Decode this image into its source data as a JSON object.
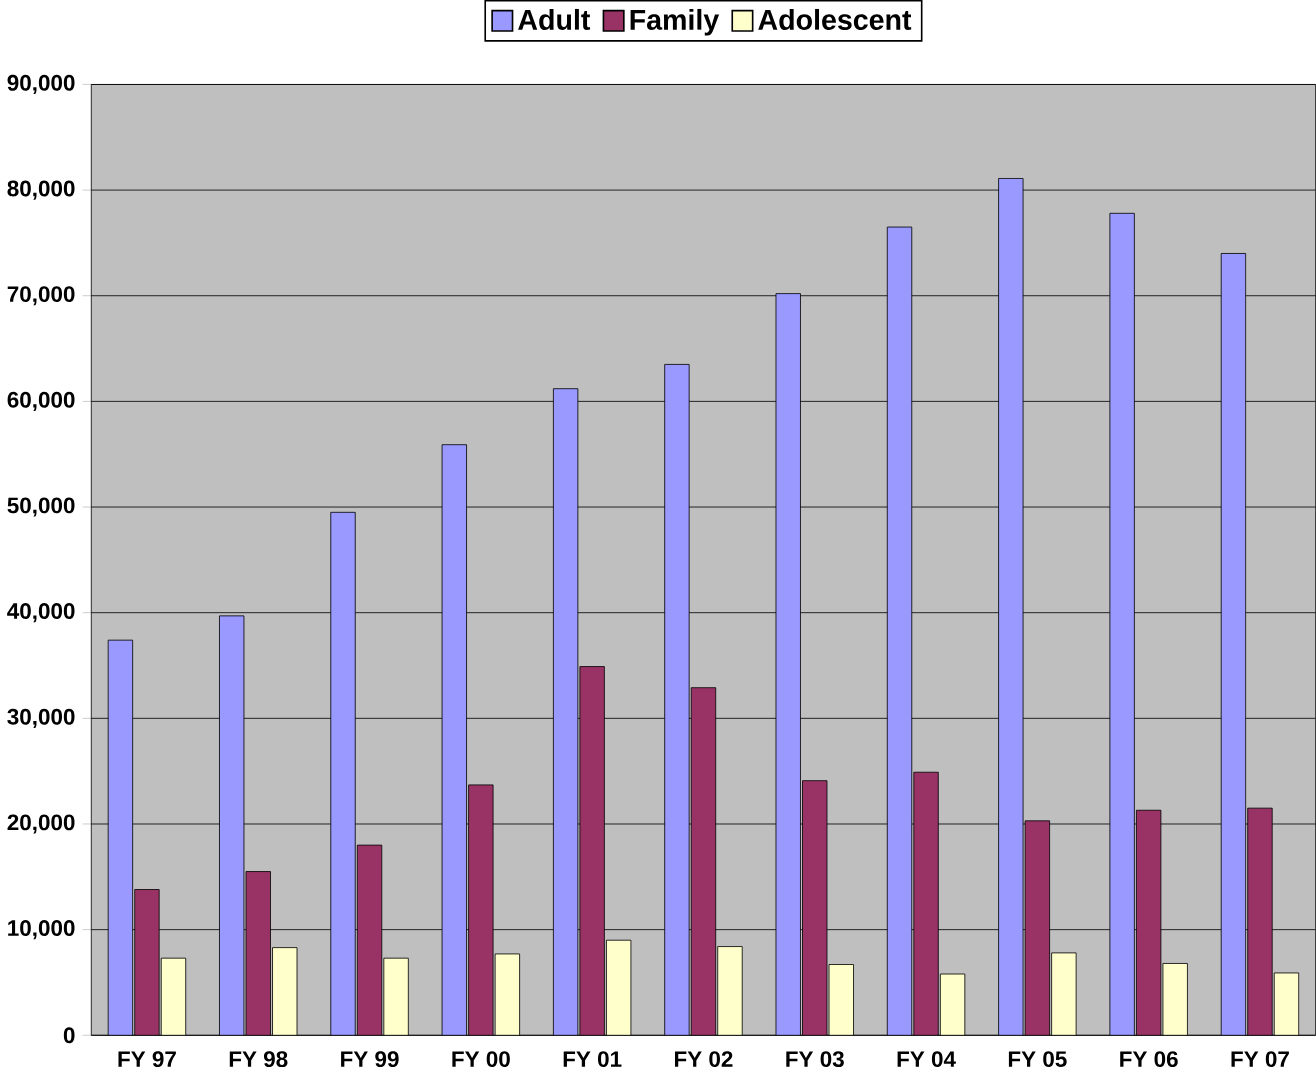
{
  "chart_data": {
    "type": "bar",
    "categories": [
      "FY 97",
      "FY 98",
      "FY 99",
      "FY 00",
      "FY 01",
      "FY 02",
      "FY 03",
      "FY 04",
      "FY 05",
      "FY 06",
      "FY 07"
    ],
    "series": [
      {
        "name": "Adult",
        "color": "#9999ff",
        "values": [
          37400,
          39700,
          49500,
          55900,
          61200,
          63500,
          70200,
          76500,
          81100,
          77800,
          74000
        ]
      },
      {
        "name": "Family",
        "color": "#993366",
        "values": [
          13800,
          15500,
          18000,
          23700,
          34900,
          32900,
          24100,
          24900,
          20300,
          21300,
          21500
        ]
      },
      {
        "name": "Adolescent",
        "color": "#ffffcc",
        "values": [
          7300,
          8300,
          7300,
          7700,
          9000,
          8400,
          6700,
          5800,
          7800,
          6800,
          5900
        ]
      }
    ],
    "ylim": [
      0,
      90000
    ],
    "yticks": [
      {
        "value": 0,
        "label": "0"
      },
      {
        "value": 10000,
        "label": "10,000"
      },
      {
        "value": 20000,
        "label": "20,000"
      },
      {
        "value": 30000,
        "label": "30,000"
      },
      {
        "value": 40000,
        "label": "40,000"
      },
      {
        "value": 50000,
        "label": "50,000"
      },
      {
        "value": 60000,
        "label": "60,000"
      },
      {
        "value": 70000,
        "label": "70,000"
      },
      {
        "value": 80000,
        "label": "80,000"
      },
      {
        "value": 90000,
        "label": "90,000"
      }
    ],
    "grid": "y",
    "legend": "top"
  }
}
